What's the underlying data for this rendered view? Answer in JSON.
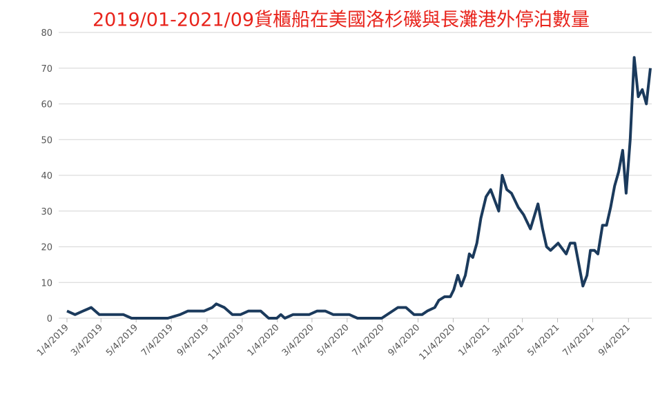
{
  "chart_data": {
    "type": "line",
    "title": "2019/01-2021/09貨櫃船在美國洛杉磯與長灘港外停泊數量",
    "x": [
      "1/4/2019",
      "1/18/2019",
      "2/1/2019",
      "2/15/2019",
      "3/1/2019",
      "3/15/2019",
      "4/12/2019",
      "4/26/2019",
      "6/28/2019",
      "7/19/2019",
      "8/2/2019",
      "8/30/2019",
      "9/13/2019",
      "9/20/2019",
      "10/4/2019",
      "10/18/2019",
      "11/1/2019",
      "11/15/2019",
      "12/6/2019",
      "12/20/2019",
      "1/3/2020",
      "1/10/2020",
      "1/17/2020",
      "1/31/2020",
      "2/28/2020",
      "3/13/2020",
      "3/27/2020",
      "4/10/2020",
      "5/8/2020",
      "5/22/2020",
      "7/3/2020",
      "7/31/2020",
      "8/14/2020",
      "8/28/2020",
      "9/11/2020",
      "9/20/2020",
      "10/3/2020",
      "10/10/2020",
      "10/20/2020",
      "10/30/2020",
      "11/5/2020",
      "11/12/2020",
      "11/18/2020",
      "11/25/2020",
      "12/2/2020",
      "12/8/2020",
      "12/15/2020",
      "12/22/2020",
      "12/31/2020",
      "1/8/2021",
      "1/22/2021",
      "1/28/2021",
      "2/5/2021",
      "2/13/2021",
      "2/25/2021",
      "3/6/2021",
      "3/18/2021",
      "3/31/2021",
      "4/8/2021",
      "4/15/2021",
      "4/22/2021",
      "5/5/2021",
      "5/19/2021",
      "5/26/2021",
      "6/3/2021",
      "6/10/2021",
      "6/17/2021",
      "6/24/2021",
      "6/30/2021",
      "7/7/2021",
      "7/13/2021",
      "7/21/2021",
      "7/28/2021",
      "8/4/2021",
      "8/11/2021",
      "8/18/2021",
      "8/25/2021",
      "8/31/2021",
      "9/7/2021",
      "9/14/2021",
      "9/21/2021",
      "9/28/2021",
      "10/5/2021",
      "10/12/2021"
    ],
    "series": [
      {
        "color": "#1b3a5c",
        "values": [
          2,
          1,
          2,
          3,
          1,
          1,
          1,
          0,
          0,
          1,
          2,
          2,
          3,
          4,
          3,
          1,
          1,
          2,
          2,
          0,
          0,
          1,
          0,
          1,
          1,
          2,
          2,
          1,
          1,
          0,
          0,
          3,
          3,
          1,
          1,
          2,
          3,
          5,
          6,
          6,
          8,
          12,
          9,
          12,
          18,
          17,
          21,
          28,
          34,
          36,
          30,
          40,
          36,
          35,
          31,
          29,
          25,
          32,
          25,
          20,
          19,
          21,
          18,
          21,
          21,
          15,
          9,
          12,
          19,
          19,
          18,
          26,
          26,
          31,
          37,
          41,
          47,
          35,
          50,
          73,
          62,
          64,
          60,
          70
        ]
      }
    ],
    "xlim": [
      "1/4/2019",
      "10/12/2021"
    ],
    "xticks": [
      "1/4/2019",
      "3/4/2019",
      "5/4/2019",
      "7/4/2019",
      "9/4/2019",
      "11/4/2019",
      "1/4/2020",
      "3/4/2020",
      "5/4/2020",
      "7/4/2020",
      "9/4/2020",
      "11/4/2020",
      "1/4/2021",
      "3/4/2021",
      "5/4/2021",
      "7/4/2021",
      "9/4/2021"
    ],
    "ylim": [
      0,
      80
    ],
    "yticks": [
      0,
      10,
      20,
      30,
      40,
      50,
      60,
      70,
      80
    ],
    "grid": true
  }
}
